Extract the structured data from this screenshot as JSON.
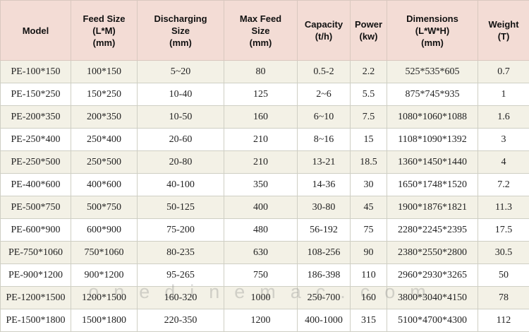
{
  "table": {
    "headers": [
      "Model",
      "Feed Size\n(L*M)\n(mm)",
      "Discharging\nSize\n(mm)",
      "Max Feed\nSize\n(mm)",
      "Capacity\n(t/h)",
      "Power\n(kw)",
      "Dimensions\n(L*W*H)\n(mm)",
      "Weight\n(T)"
    ],
    "rows": [
      [
        "PE-100*150",
        "100*150",
        "5~20",
        "80",
        "0.5-2",
        "2.2",
        "525*535*605",
        "0.7"
      ],
      [
        "PE-150*250",
        "150*250",
        "10-40",
        "125",
        "2~6",
        "5.5",
        "875*745*935",
        "1"
      ],
      [
        "PE-200*350",
        "200*350",
        "10-50",
        "160",
        "6~10",
        "7.5",
        "1080*1060*1088",
        "1.6"
      ],
      [
        "PE-250*400",
        "250*400",
        "20-60",
        "210",
        "8~16",
        "15",
        "1108*1090*1392",
        "3"
      ],
      [
        "PE-250*500",
        "250*500",
        "20-80",
        "210",
        "13-21",
        "18.5",
        "1360*1450*1440",
        "4"
      ],
      [
        "PE-400*600",
        "400*600",
        "40-100",
        "350",
        "14-36",
        "30",
        "1650*1748*1520",
        "7.2"
      ],
      [
        "PE-500*750",
        "500*750",
        "50-125",
        "400",
        "30-80",
        "45",
        "1900*1876*1821",
        "11.3"
      ],
      [
        "PE-600*900",
        "600*900",
        "75-200",
        "480",
        "56-192",
        "75",
        "2280*2245*2395",
        "17.5"
      ],
      [
        "PE-750*1060",
        "750*1060",
        "80-235",
        "630",
        "108-256",
        "90",
        "2380*2550*2800",
        "30.5"
      ],
      [
        "PE-900*1200",
        "900*1200",
        "95-265",
        "750",
        "186-398",
        "110",
        "2960*2930*3265",
        "50"
      ],
      [
        "PE-1200*1500",
        "1200*1500",
        "160-320",
        "1000",
        "250-700",
        "160",
        "3800*3040*4150",
        "78"
      ],
      [
        "PE-1500*1800",
        "1500*1800",
        "220-350",
        "1200",
        "400-1000",
        "315",
        "5100*4700*4300",
        "112"
      ]
    ]
  },
  "watermark": "onedinemac.com"
}
